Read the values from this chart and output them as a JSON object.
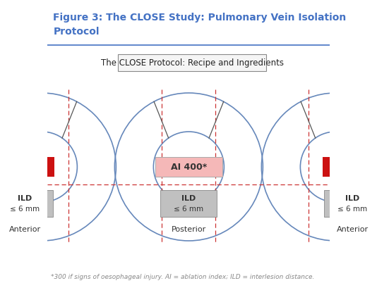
{
  "title_line1": "Figure 3: The CLOSE Study: Pulmonary Vein Isolation",
  "title_line2": "Protocol",
  "title_color": "#4472c4",
  "title_fontsize": 10,
  "bg_color": "#ffffff",
  "subtitle_box_text": "The CLOSE Protocol: Recipe and Ingredients",
  "subtitle_box_color": "#f5f5f5",
  "subtitle_box_edge": "#888888",
  "subtitle_fontsize": 8.5,
  "circle_color": "#6688bb",
  "circle_lw": 1.2,
  "dashed_line_color": "#cc3333",
  "dashed_line_lw": 0.9,
  "diagonal_line_color": "#555555",
  "diagonal_line_lw": 0.9,
  "ai550_bg": "#cc1111",
  "ai550_text_color": "#ffffff",
  "ai400_bg": "#f5b8b8",
  "ai400_text_color": "#333333",
  "ild_bg": "#c0c0c0",
  "ild_text_color": "#333333",
  "label_color": "#333333",
  "label_fontsize": 8,
  "footnote": "*300 if signs of oesophageal injury. AI = ablation index; ILD = interlesion distance.",
  "footnote_color": "#888888",
  "footnote_fontsize": 6.5,
  "sep_line_color": "#4472c4",
  "sep_line_lw": 1.2
}
